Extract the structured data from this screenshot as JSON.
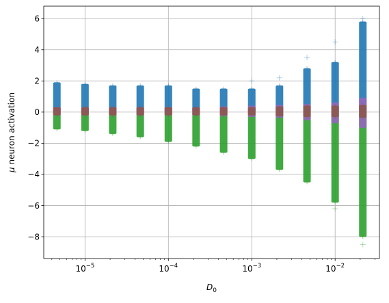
{
  "chart_data": {
    "type": "scatter",
    "title": "",
    "xlabel": "D",
    "xlabel_sub": "0",
    "ylabel_mu": "μ",
    "ylabel_rest": " neuron activation",
    "xscale": "log",
    "xlim": [
      3.2e-06,
      0.034
    ],
    "ylim": [
      -9.4,
      6.8
    ],
    "grid": true,
    "marker": "+",
    "x_tick_labels": [
      {
        "base": "10",
        "exp": "−5",
        "value": 1e-05
      },
      {
        "base": "10",
        "exp": "−4",
        "value": 0.0001
      },
      {
        "base": "10",
        "exp": "−3",
        "value": 0.001
      },
      {
        "base": "10",
        "exp": "−2",
        "value": 0.01
      }
    ],
    "y_ticks": [
      6,
      4,
      2,
      0,
      -2,
      -4,
      -6,
      -8
    ],
    "y_tick_labels": [
      "6",
      "4",
      "2",
      "0",
      "−2",
      "−4",
      "−6",
      "−8"
    ],
    "x": [
      4.6e-06,
      1e-05,
      2.15e-05,
      4.6e-05,
      0.0001,
      0.000215,
      0.00046,
      0.001,
      0.00215,
      0.0046,
      0.01,
      0.0215
    ],
    "series": [
      {
        "color": "#1f77b4",
        "min": [
          0.0,
          0.0,
          0.0,
          0.0,
          0.0,
          0.0,
          0.0,
          0.0,
          0.0,
          0.0,
          0.0,
          0.0
        ],
        "max": [
          1.9,
          1.8,
          1.7,
          1.7,
          1.7,
          1.5,
          1.5,
          1.5,
          1.7,
          2.8,
          3.2,
          5.8
        ]
      },
      {
        "color": "#2ca02c",
        "min": [
          -1.1,
          -1.2,
          -1.4,
          -1.6,
          -1.9,
          -2.2,
          -2.6,
          -3.0,
          -3.7,
          -4.5,
          -5.8,
          -8.0
        ],
        "max": [
          0.0,
          0.0,
          0.0,
          0.0,
          0.0,
          0.0,
          0.0,
          0.0,
          0.0,
          0.0,
          0.0,
          0.0
        ]
      },
      {
        "color": "#9467bd",
        "min": [
          -0.2,
          -0.2,
          -0.2,
          -0.2,
          -0.2,
          -0.2,
          -0.25,
          -0.3,
          -0.35,
          -0.5,
          -0.7,
          -1.0
        ],
        "max": [
          0.3,
          0.3,
          0.3,
          0.3,
          0.3,
          0.3,
          0.35,
          0.4,
          0.45,
          0.5,
          0.6,
          0.9
        ]
      },
      {
        "color": "#8c564b",
        "min": [
          -0.2,
          -0.2,
          -0.2,
          -0.2,
          -0.2,
          -0.2,
          -0.2,
          -0.2,
          -0.25,
          -0.3,
          -0.3,
          -0.35
        ],
        "max": [
          0.3,
          0.3,
          0.3,
          0.3,
          0.3,
          0.3,
          0.3,
          0.3,
          0.35,
          0.4,
          0.4,
          0.45
        ]
      }
    ],
    "outliers": [
      {
        "x": 0.01,
        "y": 4.5,
        "color": "#1f77b4"
      },
      {
        "x": 0.0046,
        "y": 3.5,
        "color": "#1f77b4"
      },
      {
        "x": 0.0215,
        "y": 6.0,
        "color": "#1f77b4"
      },
      {
        "x": 0.0215,
        "y": -8.5,
        "color": "#2ca02c"
      },
      {
        "x": 0.01,
        "y": -6.2,
        "color": "#2ca02c"
      },
      {
        "x": 0.00215,
        "y": 2.2,
        "color": "#1f77b4"
      },
      {
        "x": 0.001,
        "y": 2.0,
        "color": "#1f77b4"
      }
    ]
  }
}
